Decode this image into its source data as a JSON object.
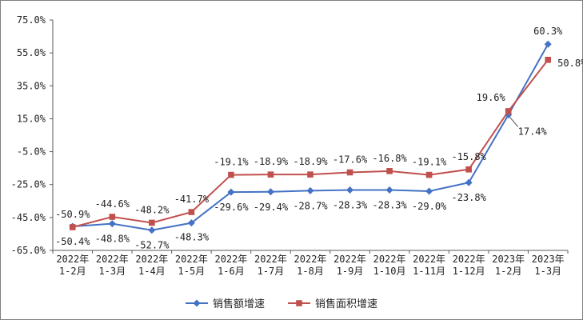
{
  "chart_data": {
    "type": "line",
    "categories": [
      [
        "2022年",
        "1-2月"
      ],
      [
        "2022年",
        "1-3月"
      ],
      [
        "2022年",
        "1-4月"
      ],
      [
        "2022年",
        "1-5月"
      ],
      [
        "2022年",
        "1-6月"
      ],
      [
        "2022年",
        "1-7月"
      ],
      [
        "2022年",
        "1-8月"
      ],
      [
        "2022年",
        "1-9月"
      ],
      [
        "2022年",
        "1-10月"
      ],
      [
        "2022年",
        "1-11月"
      ],
      [
        "2022年",
        "1-12月"
      ],
      [
        "2023年",
        "1-2月"
      ],
      [
        "2023年",
        "1-3月"
      ]
    ],
    "y_ticks": [
      "75.0%",
      "55.0%",
      "35.0%",
      "15.0%",
      "-5.0%",
      "-25.0%",
      "-45.0%",
      "-65.0%"
    ],
    "ylim": [
      -65,
      75
    ],
    "series": [
      {
        "name": "销售额增速",
        "color": "#4472c4",
        "marker": "diamond",
        "values": [
          -50.4,
          -48.8,
          -52.7,
          -48.3,
          -29.6,
          -29.4,
          -28.7,
          -28.3,
          -28.3,
          -29.0,
          -23.8,
          17.4,
          60.3
        ],
        "labels": [
          "-50.4%",
          "-48.8%",
          "-52.7%",
          "-48.3%",
          "-29.6%",
          "-29.4%",
          "-28.7%",
          "-28.3%",
          "-28.3%",
          "-29.0%",
          "-23.8%",
          "17.4%",
          "60.3%"
        ]
      },
      {
        "name": "销售面积增速",
        "color": "#c0504d",
        "marker": "square",
        "values": [
          -50.9,
          -44.6,
          -48.2,
          -41.7,
          -19.1,
          -18.9,
          -18.9,
          -17.6,
          -16.8,
          -19.1,
          -15.8,
          19.6,
          50.8
        ],
        "labels": [
          "-50.9%",
          "-44.6%",
          "-48.2%",
          "-41.7%",
          "-19.1%",
          "-18.9%",
          "-18.9%",
          "-17.6%",
          "-16.8%",
          "-19.1%",
          "-15.8%",
          "19.6%",
          "50.8%"
        ]
      }
    ],
    "grid": false,
    "legend_position": "bottom"
  }
}
